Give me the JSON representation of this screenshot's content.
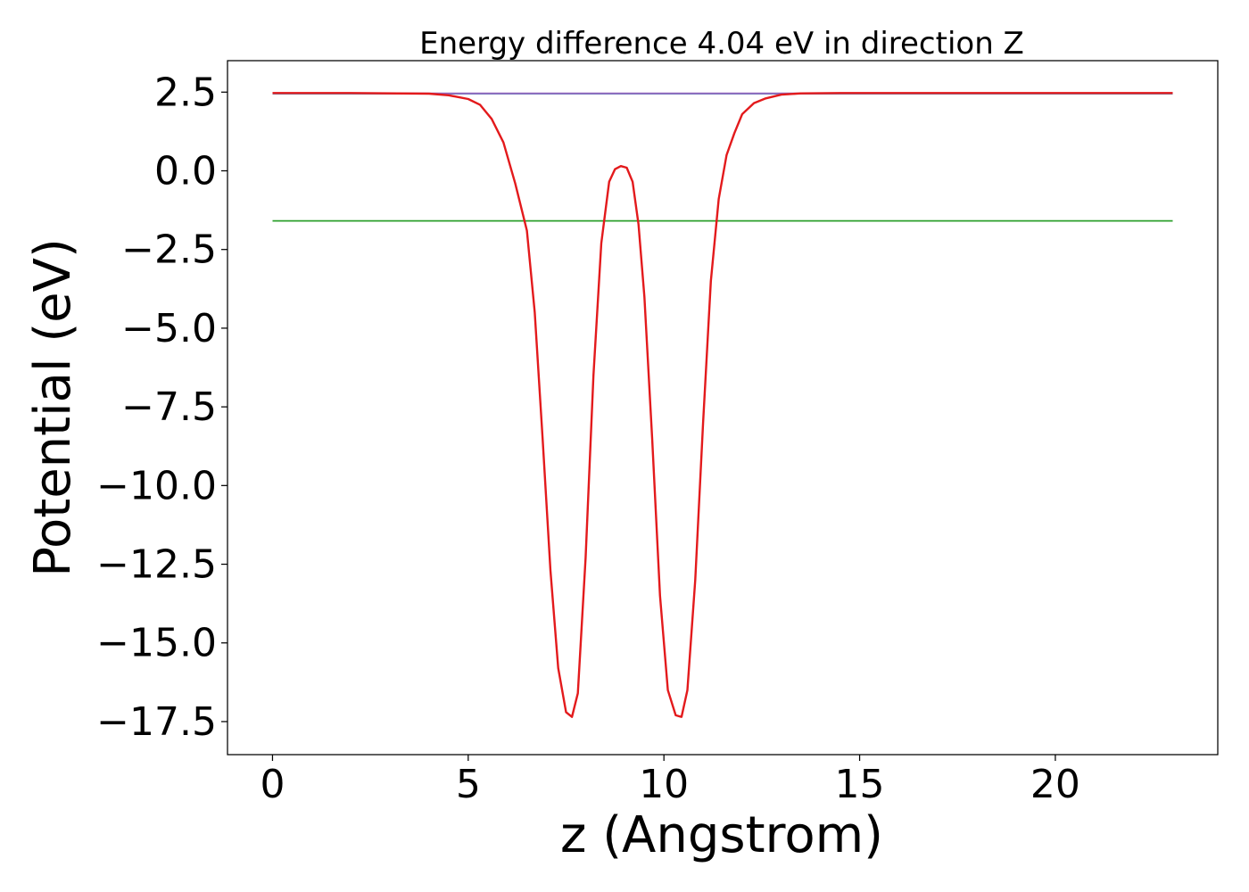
{
  "chart_data": {
    "type": "line",
    "title": "Energy difference 4.04 eV in direction Z",
    "xlabel": "z (Angstrom)",
    "ylabel": "Potential (eV)",
    "xlim": [
      -1.15,
      24.15
    ],
    "ylim": [
      -18.55,
      3.5
    ],
    "grid": false,
    "legend": "none",
    "x_ticks": [
      0,
      5,
      10,
      15,
      20
    ],
    "x_tick_labels": [
      "0",
      "5",
      "10",
      "15",
      "20"
    ],
    "y_ticks": [
      2.5,
      0.0,
      -2.5,
      -5.0,
      -7.5,
      -10.0,
      -12.5,
      -15.0,
      -17.5
    ],
    "y_tick_labels": [
      "2.5",
      "0.0",
      "−2.5",
      "−5.0",
      "−7.5",
      "−10.0",
      "−12.5",
      "−15.0",
      "−17.5"
    ],
    "series": [
      {
        "color": "#1f77b4",
        "x": [
          0,
          23
        ],
        "y": [
          2.45,
          2.45
        ]
      },
      {
        "color": "#2ca02c",
        "x": [
          0,
          23
        ],
        "y": [
          -1.59,
          -1.59
        ]
      },
      {
        "color": "#9467bd",
        "x": [
          0,
          4.0,
          13.5,
          23
        ],
        "y": [
          2.47,
          2.46,
          2.46,
          2.47
        ]
      },
      {
        "color": "#e31a1c",
        "x": [
          0,
          2.0,
          4.0,
          4.5,
          5.0,
          5.3,
          5.6,
          5.9,
          6.2,
          6.5,
          6.7,
          6.9,
          7.1,
          7.3,
          7.5,
          7.65,
          7.8,
          8.0,
          8.2,
          8.4,
          8.6,
          8.75,
          8.9,
          9.05,
          9.2,
          9.35,
          9.5,
          9.7,
          9.9,
          10.1,
          10.3,
          10.45,
          10.6,
          10.8,
          11.0,
          11.2,
          11.4,
          11.6,
          11.8,
          12.0,
          12.3,
          12.6,
          13.0,
          13.5,
          14.5,
          16.0,
          18.0,
          20.0,
          23.0
        ],
        "y": [
          2.47,
          2.47,
          2.45,
          2.4,
          2.28,
          2.1,
          1.65,
          0.9,
          -0.4,
          -1.9,
          -4.5,
          -8.5,
          -12.7,
          -15.8,
          -17.2,
          -17.35,
          -16.6,
          -12.3,
          -6.5,
          -2.3,
          -0.35,
          0.05,
          0.15,
          0.1,
          -0.35,
          -1.7,
          -4.0,
          -8.5,
          -13.5,
          -16.5,
          -17.3,
          -17.35,
          -16.5,
          -13.0,
          -8.0,
          -3.5,
          -0.9,
          0.5,
          1.2,
          1.8,
          2.15,
          2.3,
          2.42,
          2.46,
          2.47,
          2.47,
          2.47,
          2.47,
          2.47
        ]
      }
    ]
  }
}
